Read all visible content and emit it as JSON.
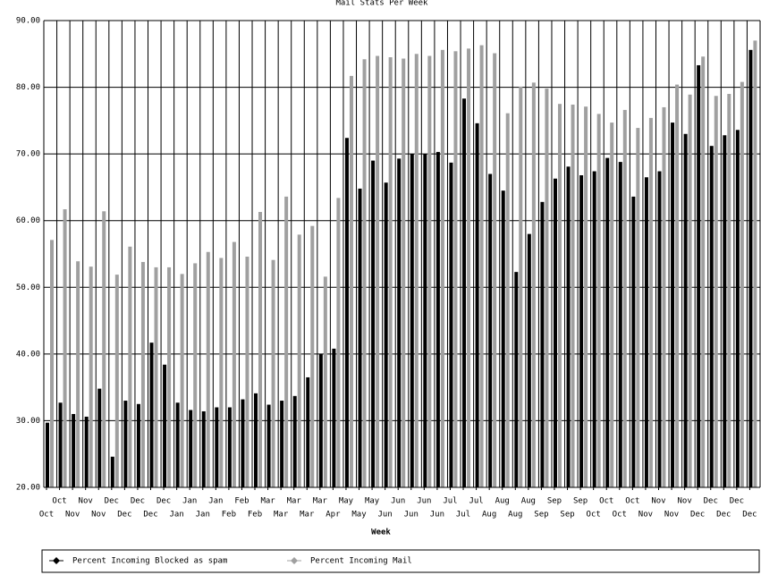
{
  "chart_data": {
    "type": "bar",
    "title": "Mail Stats Per Week",
    "x_label": "Week",
    "categories": [
      "Oct",
      "Oct",
      "Nov",
      "Nov",
      "Nov",
      "Dec",
      "Dec",
      "Dec",
      "Dec",
      "Dec",
      "Jan",
      "Jan",
      "Jan",
      "Jan",
      "Feb",
      "Feb",
      "Feb",
      "Mar",
      "Mar",
      "Mar",
      "Mar",
      "Mar",
      "Apr",
      "May",
      "May",
      "May",
      "Jun",
      "Jun",
      "Jun",
      "Jun",
      "Jun",
      "Jul",
      "Jul",
      "Jul",
      "Aug",
      "Aug",
      "Aug",
      "Aug",
      "Sep",
      "Sep",
      "Sep",
      "Sep",
      "Oct",
      "Oct",
      "Oct",
      "Oct",
      "Nov",
      "Nov",
      "Nov",
      "Nov",
      "Dec",
      "Dec",
      "Dec",
      "Dec",
      "Dec"
    ],
    "series": [
      {
        "name": "Percent Incoming Blocked as spam",
        "color": "#000000",
        "values": [
          29.7,
          32.7,
          31.0,
          30.6,
          34.8,
          24.6,
          33.0,
          32.5,
          41.7,
          38.4,
          32.7,
          31.6,
          31.4,
          32.0,
          32.0,
          33.2,
          34.1,
          32.4,
          33.0,
          33.7,
          36.5,
          40.0,
          40.8,
          72.4,
          64.8,
          69.0,
          65.7,
          69.3,
          70.0,
          70.0,
          70.3,
          68.7,
          78.3,
          74.6,
          67.0,
          64.5,
          52.3,
          58.0,
          62.8,
          66.3,
          68.1,
          66.8,
          67.4,
          69.4,
          68.8,
          63.6,
          66.5,
          67.4,
          74.7,
          73.0,
          83.3,
          71.2,
          72.8,
          73.6,
          85.6
        ]
      },
      {
        "name": "Percent Incoming Mail",
        "color": "#a0a0a0",
        "values": [
          57.1,
          61.7,
          53.9,
          53.1,
          61.4,
          51.9,
          56.1,
          53.8,
          53.0,
          53.0,
          52.0,
          53.6,
          55.3,
          54.4,
          56.8,
          54.6,
          61.3,
          54.1,
          63.6,
          57.9,
          59.2,
          51.6,
          63.4,
          81.7,
          84.2,
          84.7,
          84.5,
          84.3,
          85.0,
          84.7,
          85.6,
          85.4,
          85.8,
          86.3,
          85.1,
          76.1,
          80.1,
          80.7,
          79.8,
          77.5,
          77.4,
          77.1,
          76.0,
          74.7,
          76.6,
          73.9,
          75.4,
          77.0,
          80.4,
          78.9,
          84.6,
          78.7,
          79.0,
          80.8,
          87.0
        ]
      }
    ],
    "ylim": [
      20,
      90
    ],
    "yticks": [
      {
        "value": 20,
        "label": "20.00"
      },
      {
        "value": 30,
        "label": "30.00"
      },
      {
        "value": 40,
        "label": "40.00"
      },
      {
        "value": 50,
        "label": "50.00"
      },
      {
        "value": 60,
        "label": "60.00"
      },
      {
        "value": 70,
        "label": "70.00"
      },
      {
        "value": 80,
        "label": "80.00"
      },
      {
        "value": 90,
        "label": "90.00"
      }
    ],
    "grid": true
  }
}
